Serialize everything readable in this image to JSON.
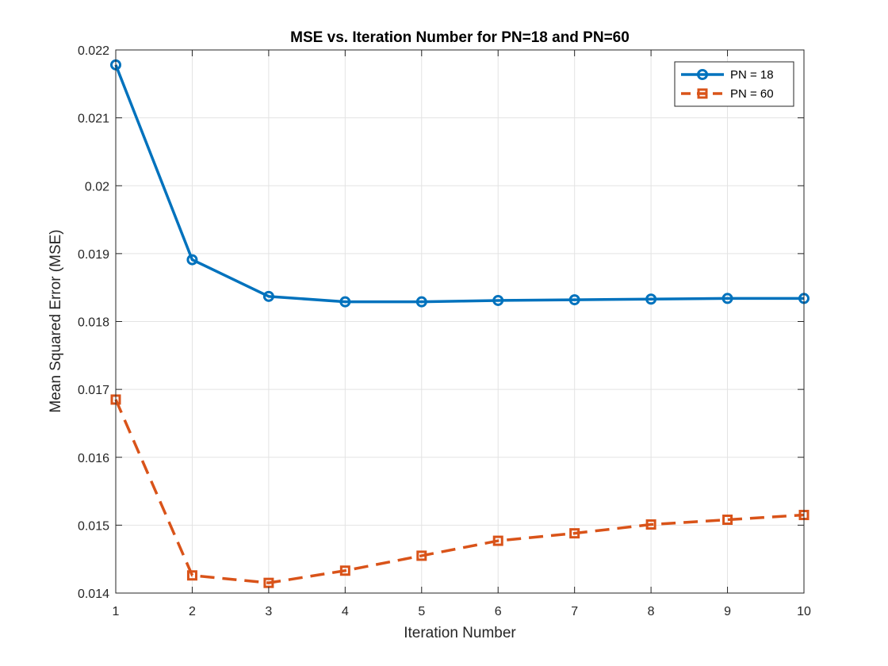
{
  "chart_data": {
    "type": "line",
    "title": "MSE vs. Iteration Number for PN=18 and PN=60",
    "xlabel": "Iteration Number",
    "ylabel": "Mean Squared Error (MSE)",
    "xlim": [
      1,
      10
    ],
    "ylim": [
      0.014,
      0.022
    ],
    "xticks": [
      1,
      2,
      3,
      4,
      5,
      6,
      7,
      8,
      9,
      10
    ],
    "xtick_labels": [
      "1",
      "2",
      "3",
      "4",
      "5",
      "6",
      "7",
      "8",
      "9",
      "10"
    ],
    "yticks": [
      0.014,
      0.015,
      0.016,
      0.017,
      0.018,
      0.019,
      0.02,
      0.021,
      0.022
    ],
    "ytick_labels": [
      "0.014",
      "0.015",
      "0.016",
      "0.017",
      "0.018",
      "0.019",
      "0.02",
      "0.021",
      "0.022"
    ],
    "grid": true,
    "legend_position": "top-right",
    "x": [
      1,
      2,
      3,
      4,
      5,
      6,
      7,
      8,
      9,
      10
    ],
    "series": [
      {
        "name": "PN = 18",
        "legend_label": "PN = 18",
        "values": [
          0.02178,
          0.01891,
          0.01837,
          0.01829,
          0.01829,
          0.01831,
          0.01832,
          0.01833,
          0.01834,
          0.01834
        ],
        "color": "#0072BD",
        "line_style": "solid",
        "marker": "circle"
      },
      {
        "name": "PN = 60",
        "legend_label": "PN = 60",
        "values": [
          0.01685,
          0.01426,
          0.01415,
          0.01433,
          0.01455,
          0.01477,
          0.01488,
          0.01501,
          0.01508,
          0.01515
        ],
        "color": "#D95319",
        "line_style": "dashed",
        "marker": "square"
      }
    ]
  }
}
